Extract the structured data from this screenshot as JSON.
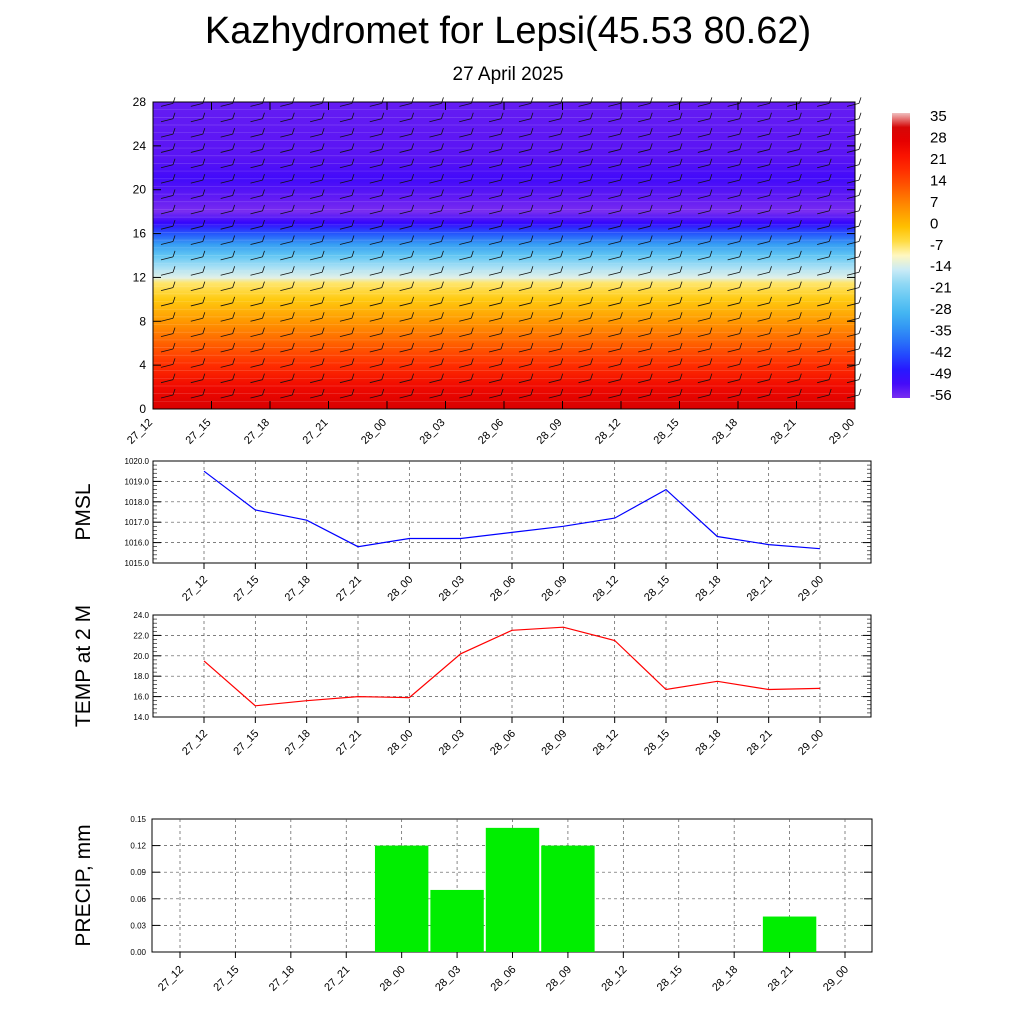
{
  "title": "Kazhydromet for Lepsi(45.53 80.62)",
  "subtitle": "27 April 2025",
  "time_labels": [
    "27_12",
    "27_15",
    "27_18",
    "27_21",
    "28_00",
    "28_03",
    "28_06",
    "28_09",
    "28_12",
    "28_15",
    "28_18",
    "28_21",
    "29_00"
  ],
  "chart_data": [
    {
      "type": "heatmap",
      "name": "upper-air cross-section",
      "x": [
        "27_12",
        "27_15",
        "27_18",
        "27_21",
        "28_00",
        "28_03",
        "28_06",
        "28_09",
        "28_12",
        "28_15",
        "28_18",
        "28_21",
        "29_00"
      ],
      "ylim": [
        0,
        28
      ],
      "yticks": [
        0,
        4,
        8,
        12,
        16,
        20,
        24,
        28
      ],
      "colorbar_labels": [
        "35",
        "28",
        "21",
        "14",
        "7",
        "0",
        "-7",
        "-14",
        "-21",
        "-28",
        "-35",
        "-42",
        "-49",
        "-56"
      ],
      "profile": [
        {
          "level": 0,
          "value": 30
        },
        {
          "level": 2,
          "value": 24
        },
        {
          "level": 4,
          "value": 17
        },
        {
          "level": 6,
          "value": 10
        },
        {
          "level": 8,
          "value": 3
        },
        {
          "level": 10,
          "value": -4
        },
        {
          "level": 11.5,
          "value": -9
        },
        {
          "level": 12,
          "value": -15
        },
        {
          "level": 13,
          "value": -20
        },
        {
          "level": 14,
          "value": -27
        },
        {
          "level": 15,
          "value": -35
        },
        {
          "level": 16,
          "value": -44
        },
        {
          "level": 17,
          "value": -54
        },
        {
          "level": 18,
          "value": -60
        },
        {
          "level": 19,
          "value": -58
        },
        {
          "level": 21,
          "value": -55
        },
        {
          "level": 23,
          "value": -57
        },
        {
          "level": 28,
          "value": -58
        }
      ],
      "wind_barbs": true
    },
    {
      "type": "line",
      "ylabel": "PMSL",
      "ylim": [
        1015.0,
        1020.0
      ],
      "yticks": [
        "1015.0",
        "1016.0",
        "1017.0",
        "1018.0",
        "1019.0",
        "1020.0"
      ],
      "x": [
        "27_12",
        "27_15",
        "27_18",
        "27_21",
        "28_00",
        "28_03",
        "28_06",
        "28_09",
        "28_12",
        "28_15",
        "28_18",
        "28_21",
        "29_00"
      ],
      "values": [
        1019.5,
        1017.6,
        1017.1,
        1015.8,
        1016.2,
        1016.2,
        1016.5,
        1016.8,
        1017.2,
        1018.6,
        1016.3,
        1015.9,
        1015.7
      ],
      "color": "#0000ff",
      "grid": true
    },
    {
      "type": "line",
      "ylabel": "TEMP at 2 M",
      "ylim": [
        14.0,
        24.0
      ],
      "yticks": [
        "14.0",
        "16.0",
        "18.0",
        "20.0",
        "22.0",
        "24.0"
      ],
      "x": [
        "27_12",
        "27_15",
        "27_18",
        "27_21",
        "28_00",
        "28_03",
        "28_06",
        "28_09",
        "28_12",
        "28_15",
        "28_18",
        "28_21",
        "29_00"
      ],
      "values": [
        19.5,
        15.1,
        15.6,
        16.0,
        15.9,
        20.2,
        22.5,
        22.8,
        21.5,
        16.7,
        17.5,
        16.7,
        16.8
      ],
      "color": "#ff0000",
      "grid": true
    },
    {
      "type": "bar",
      "ylabel": "PRECIP, mm",
      "ylim": [
        0,
        0.15
      ],
      "yticks": [
        "0.00",
        "0.03",
        "0.06",
        "0.09",
        "0.12",
        "0.15"
      ],
      "categories": [
        "27_12",
        "27_15",
        "27_18",
        "27_21",
        "28_00",
        "28_03",
        "28_06",
        "28_09",
        "28_12",
        "28_15",
        "28_18",
        "28_21",
        "29_00"
      ],
      "values": [
        0,
        0,
        0,
        0,
        0.12,
        0.07,
        0.14,
        0.12,
        0,
        0,
        0,
        0.04,
        0
      ],
      "color": "#00ee00",
      "grid": true
    }
  ]
}
